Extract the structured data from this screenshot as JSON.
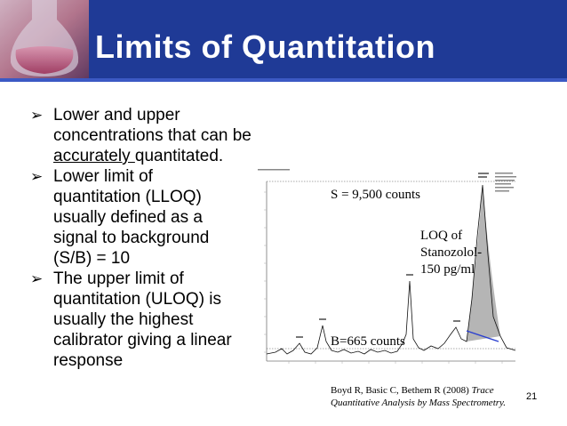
{
  "slide": {
    "title": "Limits of Quantitation",
    "bullets": [
      {
        "line1": "Lower and upper",
        "line2": "concentrations that can be",
        "line3_u": "accurately ",
        "line3": "quantitated."
      },
      {
        "lines": [
          "Lower limit of",
          "quantitation (LLOQ)",
          "usually defined as a",
          "signal to background",
          "(S/B) = 10"
        ]
      },
      {
        "lines": [
          "The upper limit of",
          "quantitation (ULOQ) is",
          "usually the highest",
          "calibrator giving a linear",
          "response"
        ]
      }
    ],
    "annotations": {
      "signal": "S = 9,500 counts",
      "background": "B=665 counts",
      "loq": [
        "LOQ of",
        "Stanozolol-",
        "150 pg/ml"
      ]
    },
    "citation": {
      "authors": "Boyd R, Basic C, Bethem R (2008) ",
      "title": "Trace",
      "title2": "Quantitative Analysis by Mass Spectrometry."
    },
    "page_number": "21"
  },
  "colors": {
    "header": "#1f3a96",
    "peak_fill": "#b5b5b5",
    "baseline": "#2a3fd0"
  }
}
